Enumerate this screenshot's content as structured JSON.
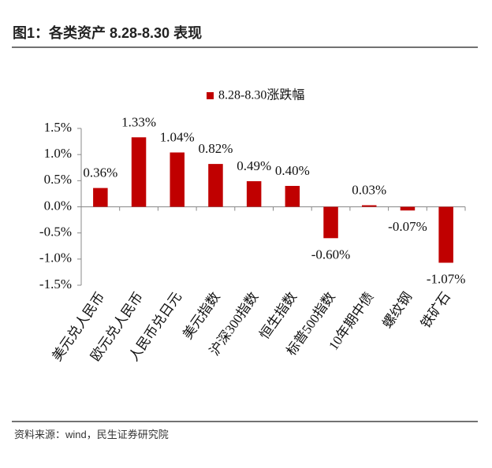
{
  "title": "图1：各类资产 8.28-8.30 表现",
  "source": "资料来源：wind，民生证券研究院",
  "chart_data": {
    "type": "bar",
    "categories": [
      "美元兑人民币",
      "欧元兑人民币",
      "人民币兑日元",
      "美元指数",
      "沪深300指数",
      "恒生指数",
      "标普500指数",
      "10年期中债",
      "螺纹钢",
      "铁矿石"
    ],
    "series": [
      {
        "name": "8.28-8.30涨跌幅",
        "color": "#c00000",
        "values": [
          0.36,
          1.33,
          1.04,
          0.82,
          0.49,
          0.4,
          -0.6,
          0.03,
          -0.07,
          -1.07
        ],
        "value_labels": [
          "0.36%",
          "1.33%",
          "1.04%",
          "0.82%",
          "0.49%",
          "0.40%",
          "-0.60%",
          "0.03%",
          "-0.07%",
          "-1.07%"
        ]
      }
    ],
    "ylim": [
      -1.5,
      1.5
    ],
    "yticks": [
      {
        "value": -1.5,
        "label": "-1.5%"
      },
      {
        "value": -1.0,
        "label": "-1.0%"
      },
      {
        "value": -0.5,
        "label": "-0.5%"
      },
      {
        "value": 0,
        "label": "0.0%"
      },
      {
        "value": 0.5,
        "label": "0.5%"
      },
      {
        "value": 1.0,
        "label": "1.0%"
      },
      {
        "value": 1.5,
        "label": "1.5%"
      }
    ],
    "legend": "top"
  }
}
